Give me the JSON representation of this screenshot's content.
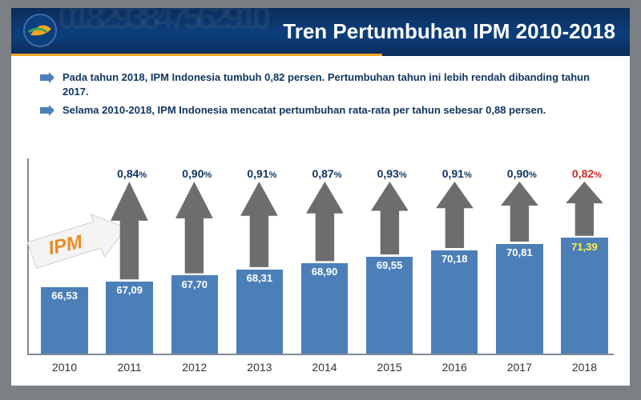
{
  "header": {
    "title": "Tren Pertumbuhan IPM 2010-2018",
    "bg_digits": "018293847562910",
    "stripe_color": "#f5a623",
    "bg_gradient_from": "#0a2c5a",
    "bg_gradient_mid": "#0d3f7d",
    "bg_gradient_to": "#0a2c5a",
    "title_color": "#ffffff"
  },
  "bullets": [
    "Pada tahun 2018, IPM Indonesia tumbuh 0,82 persen. Pertumbuhan tahun ini lebih rendah dibanding tahun 2017.",
    "Selama 2010-2018, IPM Indonesia mencatat pertumbuhan rata-rata per tahun sebesar 0,88 persen."
  ],
  "ipm_label": "IPM",
  "chart": {
    "type": "bar",
    "background_color": "#ffffff",
    "bar_color": "#4c7fb8",
    "bar_label_color": "#ffffff",
    "bar_label_highlight_color": "#fff04a",
    "arrow_color": "#6d6d6d",
    "axis_color": "#7e8a97",
    "years": [
      "2010",
      "2011",
      "2012",
      "2013",
      "2014",
      "2015",
      "2016",
      "2017",
      "2018"
    ],
    "values": [
      66.53,
      67.09,
      67.7,
      68.31,
      68.9,
      69.55,
      70.18,
      70.81,
      71.39
    ],
    "value_labels": [
      "66,53",
      "67,09",
      "67,70",
      "68,31",
      "68,90",
      "69,55",
      "70,18",
      "70,81",
      "71,39"
    ],
    "growth_labels": [
      "",
      "0,84",
      "0,90",
      "0,91",
      "0,87",
      "0,93",
      "0,91",
      "0,90",
      "0,82"
    ],
    "growth_highlight_index": 8,
    "growth_color": "#10355f",
    "growth_highlight_color": "#cc2a2a",
    "ymin": 60,
    "ymax": 75,
    "arrow_top_ratio": 0.22,
    "label_fontsize": 13,
    "growth_fontsize": 14,
    "year_fontsize": 14,
    "bar_width_ratio": 0.8
  },
  "page_bg": "#7c7f83"
}
